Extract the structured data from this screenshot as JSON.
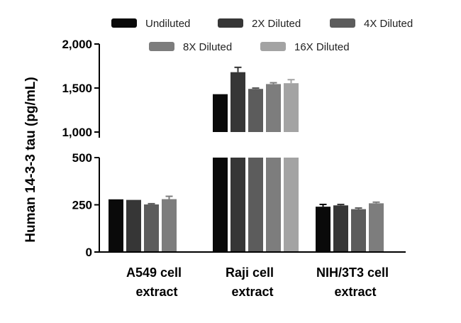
{
  "chart_data": {
    "type": "bar",
    "ylabel": "Human 14-3-3 tau (pg/mL)",
    "categories": [
      "A549 cell extract",
      "Raji cell extract",
      "NIH/3T3 cell extract"
    ],
    "category_lines": [
      [
        "A549 cell",
        "extract"
      ],
      [
        "Raji cell",
        "extract"
      ],
      [
        "NIH/3T3 cell",
        "extract"
      ]
    ],
    "y_break": {
      "lower_range": [
        0,
        500
      ],
      "upper_range": [
        1000,
        2000
      ]
    },
    "yticks": [
      0,
      250,
      500,
      1000,
      1500,
      2000
    ],
    "ytick_labels": [
      "0",
      "250",
      "500",
      "1,000",
      "1,500",
      "2,000"
    ],
    "legend_position": "top",
    "series": [
      {
        "name": "Undiluted",
        "color": "#0a0a0a",
        "values": [
          279,
          1430,
          240
        ],
        "errors": [
          0,
          0,
          12
        ]
      },
      {
        "name": "2X Diluted",
        "color": "#363636",
        "values": [
          276,
          1680,
          247
        ],
        "errors": [
          0,
          55,
          5
        ]
      },
      {
        "name": "4X Diluted",
        "color": "#5c5c5c",
        "values": [
          252,
          1490,
          227
        ],
        "errors": [
          4,
          10,
          6
        ]
      },
      {
        "name": "8X Diluted",
        "color": "#7d7d7d",
        "values": [
          280,
          1545,
          258
        ],
        "errors": [
          15,
          15,
          6
        ]
      },
      {
        "name": "16X Diluted",
        "color": "#a3a3a3",
        "values": [
          null,
          1555,
          null
        ],
        "errors": [
          null,
          40,
          null
        ]
      }
    ]
  }
}
